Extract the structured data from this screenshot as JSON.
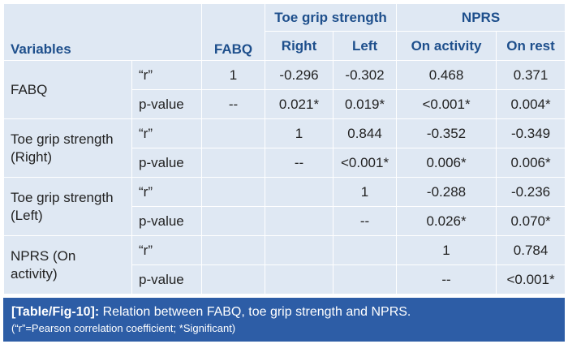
{
  "table": {
    "headers": {
      "variables": "Variables",
      "fabq": "FABQ",
      "toe_group": "Toe grip strength",
      "npr_group": "NPRS",
      "right": "Right",
      "left": "Left",
      "on_activity": "On activity",
      "on_rest": "On rest"
    },
    "groups": [
      {
        "label": "FABQ",
        "rows": [
          {
            "stat": "“r”",
            "cells": [
              "1",
              "-0.296",
              "-0.302",
              "0.468",
              "0.371"
            ]
          },
          {
            "stat": "p-value",
            "cells": [
              "--",
              "0.021*",
              "0.019*",
              "<0.001*",
              "0.004*"
            ]
          }
        ]
      },
      {
        "label": "Toe grip strength (Right)",
        "rows": [
          {
            "stat": "“r”",
            "cells": [
              "",
              "1",
              "0.844",
              "-0.352",
              "-0.349"
            ]
          },
          {
            "stat": "p-value",
            "cells": [
              "",
              "--",
              "<0.001*",
              "0.006*",
              "0.006*"
            ]
          }
        ]
      },
      {
        "label": "Toe grip strength (Left)",
        "rows": [
          {
            "stat": "“r”",
            "cells": [
              "",
              "",
              "1",
              "-0.288",
              "-0.236"
            ]
          },
          {
            "stat": "p-value",
            "cells": [
              "",
              "",
              "--",
              "0.026*",
              "0.070*"
            ]
          }
        ]
      },
      {
        "label": "NPRS (On activity)",
        "rows": [
          {
            "stat": "“r”",
            "cells": [
              "",
              "",
              "",
              "1",
              "0.784"
            ]
          },
          {
            "stat": "p-value",
            "cells": [
              "",
              "",
              "",
              "--",
              "<0.001*"
            ]
          }
        ]
      }
    ]
  },
  "caption": {
    "label": "[Table/Fig-10]:",
    "text": "Relation between FABQ, toe grip strength and NPRS.",
    "note": "(“r”=Pearson correlation coefficient; *Significant)"
  },
  "colors": {
    "table_bg": "#dfe8f3",
    "header_text": "#1e4f8c",
    "caption_bg": "#2d5da6"
  }
}
